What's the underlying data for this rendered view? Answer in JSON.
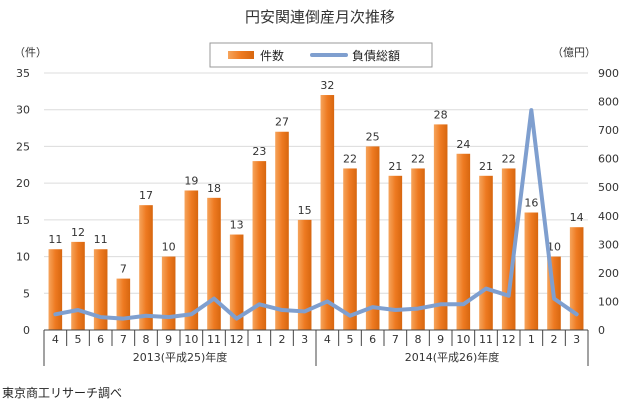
{
  "chart_data": {
    "type": "bar",
    "title": "円安関連倒産月次推移",
    "left_unit": "（件）",
    "right_unit": "（億円）",
    "credit": "東京商工リサーチ調べ",
    "categories": [
      "4",
      "5",
      "6",
      "7",
      "8",
      "9",
      "10",
      "11",
      "12",
      "1",
      "2",
      "3",
      "4",
      "5",
      "6",
      "7",
      "8",
      "9",
      "10",
      "11",
      "12",
      "1",
      "2",
      "3"
    ],
    "groups": [
      {
        "label": "2013(平成25)年度",
        "count": 12
      },
      {
        "label": "2014(平成26)年度",
        "count": 12
      }
    ],
    "y_left": {
      "min": 0,
      "max": 35,
      "step": 5
    },
    "y_right": {
      "min": 0,
      "max": 900,
      "step": 100
    },
    "legend_position": "top-center",
    "grid": true,
    "series": [
      {
        "name": "件数",
        "type": "bar",
        "axis": "left",
        "color": "#ee7a21",
        "values": [
          11,
          12,
          11,
          7,
          17,
          10,
          19,
          18,
          13,
          23,
          27,
          15,
          32,
          22,
          25,
          21,
          22,
          28,
          24,
          21,
          22,
          16,
          10,
          14
        ]
      },
      {
        "name": "負債総額",
        "type": "line",
        "axis": "right",
        "color": "#7f9fcf",
        "values": [
          55,
          70,
          45,
          40,
          50,
          45,
          55,
          110,
          40,
          90,
          70,
          65,
          100,
          50,
          80,
          70,
          75,
          90,
          90,
          145,
          120,
          770,
          110,
          55
        ]
      }
    ]
  }
}
